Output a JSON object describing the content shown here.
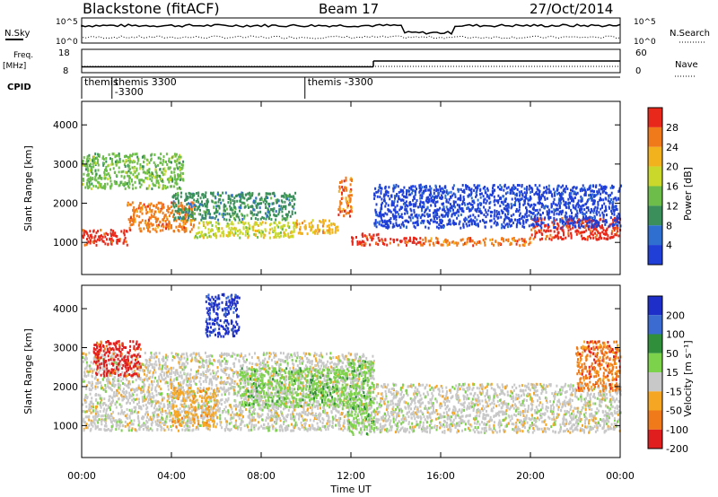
{
  "header": {
    "station": "Blackstone (fitACF)",
    "beam": "Beam 17",
    "date": "27/Oct/2014"
  },
  "summary_panels": {
    "nsky_label": "N.Sky",
    "nsearch_label": "N.Search",
    "freq_label": "Freq.",
    "freq_unit": "[MHz]",
    "nave_label": "Nave",
    "cpid_label": "CPID",
    "noise_ticks_left": [
      "10^5",
      "10^0"
    ],
    "noise_ticks_right": [
      "10^5",
      "10^0"
    ],
    "freq_ticks": [
      "18",
      "8"
    ],
    "nave_ticks": [
      "60",
      "0"
    ]
  },
  "cpid": [
    {
      "start_hour": 0.0,
      "lines": [
        "themis"
      ]
    },
    {
      "start_hour": 1.35,
      "lines": [
        "themis 3300",
        "-3300"
      ]
    },
    {
      "start_hour": 9.95,
      "lines": [
        "themis -3300"
      ]
    }
  ],
  "power_panel": {
    "ylabel": "Slant Range [km]",
    "colorbar_label": "Power [dB]",
    "colorbar_ticks": [
      "28",
      "24",
      "20",
      "16",
      "12",
      "8",
      "4"
    ],
    "colors": [
      "#1f3fd6",
      "#2f6fd0",
      "#3a8f5a",
      "#6dbd4a",
      "#c9d82a",
      "#f2b21e",
      "#f07a1a",
      "#e8281a"
    ]
  },
  "velocity_panel": {
    "ylabel": "Slant Range [km]",
    "colorbar_label": "Velocity [m s⁻¹]",
    "colorbar_ticks": [
      "200",
      "100",
      "50",
      "15",
      "-15",
      "-50",
      "-100",
      "-200"
    ],
    "colors": [
      "#1d2fc8",
      "#3b6bd0",
      "#2f8f3a",
      "#7cd24a",
      "#c8c8c8",
      "#f5a623",
      "#f07a1a",
      "#e01e1e"
    ]
  },
  "axes": {
    "y_ticks": [
      "4000",
      "3000",
      "2000",
      "1000"
    ],
    "x_ticks": [
      "00:00",
      "04:00",
      "08:00",
      "12:00",
      "16:00",
      "20:00",
      "00:00"
    ],
    "xlabel": "Time UT"
  },
  "chart_data": {
    "type": "heatmap",
    "title": "Blackstone (fitACF) Beam 17 27/Oct/2014",
    "xlabel": "Time UT",
    "ylabel": "Slant Range [km]",
    "xlim_hours": [
      0,
      24
    ],
    "ylim_km": [
      180,
      4600
    ],
    "frequency_mhz": [
      {
        "from_hour": 0,
        "to_hour": 13.0,
        "value": 10.5
      },
      {
        "from_hour": 13.0,
        "to_hour": 24,
        "value": 13.0
      }
    ],
    "power_bands": [
      {
        "t": [
          0.0,
          2.0
        ],
        "r": [
          950,
          1350
        ],
        "level": 7
      },
      {
        "t": [
          2.0,
          5.0
        ],
        "r": [
          1300,
          2050
        ],
        "level": 6
      },
      {
        "t": [
          5.0,
          9.5
        ],
        "r": [
          1150,
          1550
        ],
        "level": 4
      },
      {
        "t": [
          9.5,
          11.4
        ],
        "r": [
          1250,
          1600
        ],
        "level": 5
      },
      {
        "t": [
          11.4,
          12.0
        ],
        "r": [
          1700,
          2700
        ],
        "level": 6
      },
      {
        "t": [
          12.0,
          13.2
        ],
        "r": [
          950,
          1250
        ],
        "level": 7
      },
      {
        "t": [
          13.2,
          15.0
        ],
        "r": [
          950,
          1150
        ],
        "level": 7
      },
      {
        "t": [
          15.0,
          20.0
        ],
        "r": [
          950,
          1150
        ],
        "level": 6
      },
      {
        "t": [
          20.0,
          24.0
        ],
        "r": [
          1100,
          1650
        ],
        "level": 7
      },
      {
        "t": [
          0.0,
          4.5
        ],
        "r": [
          2400,
          3300
        ],
        "level": 3
      },
      {
        "t": [
          4.0,
          9.5
        ],
        "r": [
          1600,
          2300
        ],
        "level": 2
      },
      {
        "t": [
          13.0,
          24.0
        ],
        "r": [
          1400,
          2500
        ],
        "level": 0
      }
    ],
    "velocity_bands": [
      {
        "t": [
          0.0,
          13.0
        ],
        "r": [
          900,
          2900
        ],
        "level": 4
      },
      {
        "t": [
          13.0,
          24.0
        ],
        "r": [
          850,
          2100
        ],
        "level": 4
      },
      {
        "t": [
          0.5,
          2.6
        ],
        "r": [
          2300,
          3200
        ],
        "level": 7
      },
      {
        "t": [
          4.0,
          6.0
        ],
        "r": [
          1000,
          2000
        ],
        "level": 5
      },
      {
        "t": [
          7.0,
          11.8
        ],
        "r": [
          1500,
          2500
        ],
        "level": 3
      },
      {
        "t": [
          11.8,
          13.0
        ],
        "r": [
          800,
          2700
        ],
        "level": 3
      },
      {
        "t": [
          5.5,
          7.0
        ],
        "r": [
          3300,
          4400
        ],
        "level": 0
      },
      {
        "t": [
          22.0,
          24.0
        ],
        "r": [
          1900,
          3200
        ],
        "level": 6
      }
    ]
  }
}
